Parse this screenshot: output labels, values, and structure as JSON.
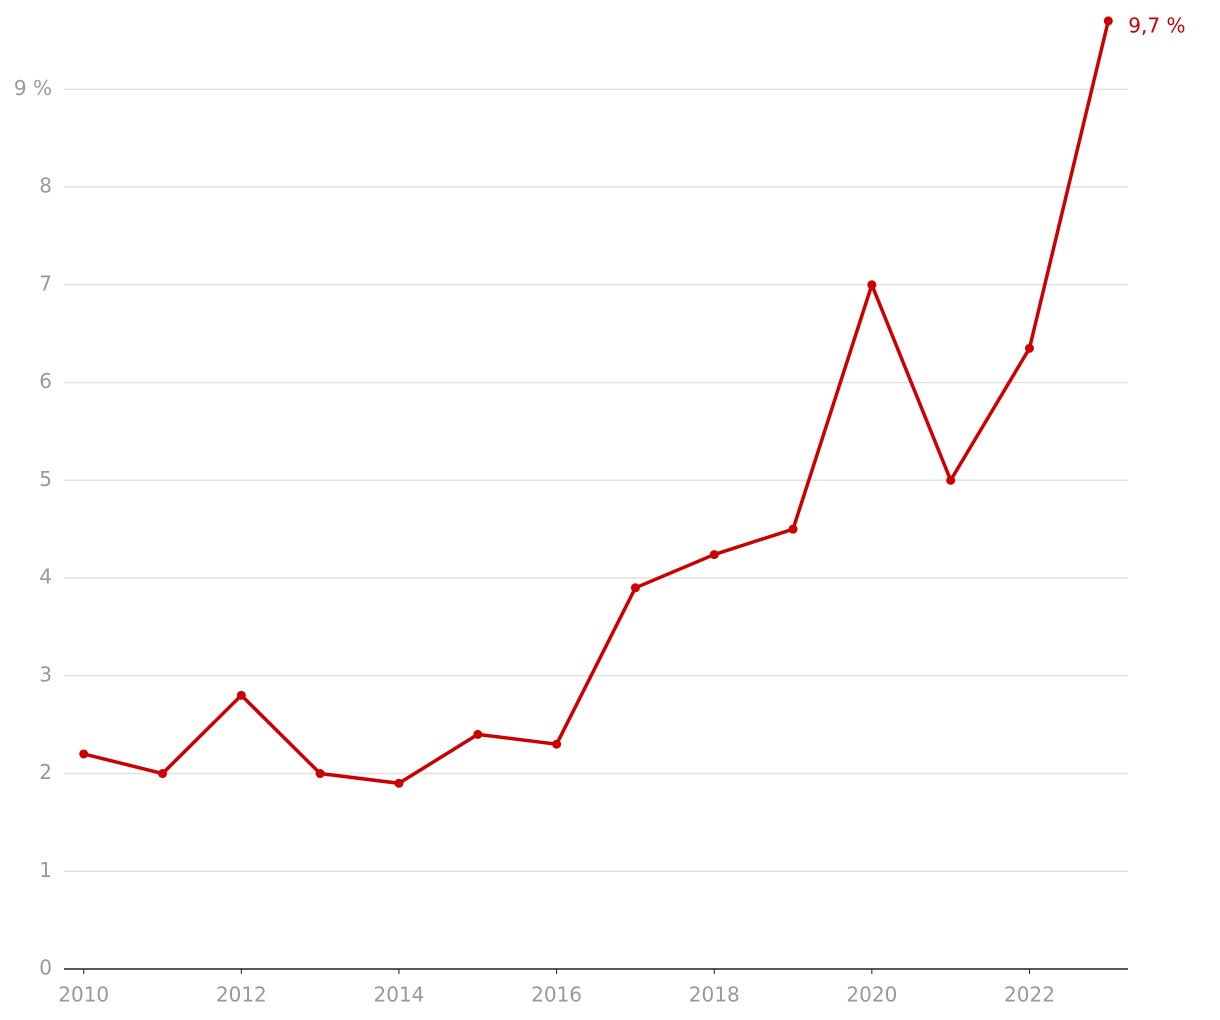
{
  "chart_data": {
    "type": "line",
    "x": [
      2010,
      2011,
      2012,
      2013,
      2014,
      2015,
      2016,
      2017,
      2018,
      2019,
      2020,
      2021,
      2022,
      2023
    ],
    "values": [
      2.2,
      2.0,
      2.8,
      2.0,
      1.9,
      2.4,
      2.3,
      3.9,
      4.24,
      4.5,
      7.0,
      5.0,
      6.35,
      9.7
    ],
    "value_labels": [
      null,
      null,
      null,
      null,
      null,
      null,
      null,
      null,
      null,
      null,
      null,
      null,
      null,
      "9,7 %"
    ],
    "color": "#cc0000",
    "xlim": [
      2009.75,
      2023.25
    ],
    "xticks": [
      2010,
      2012,
      2014,
      2016,
      2018,
      2020,
      2022
    ],
    "ylim": [
      0,
      9.75
    ],
    "yticks": [
      0,
      1,
      2,
      3,
      4,
      5,
      6,
      7,
      8,
      {
        "value": 9,
        "label": "9 %"
      }
    ],
    "grid": true
  }
}
